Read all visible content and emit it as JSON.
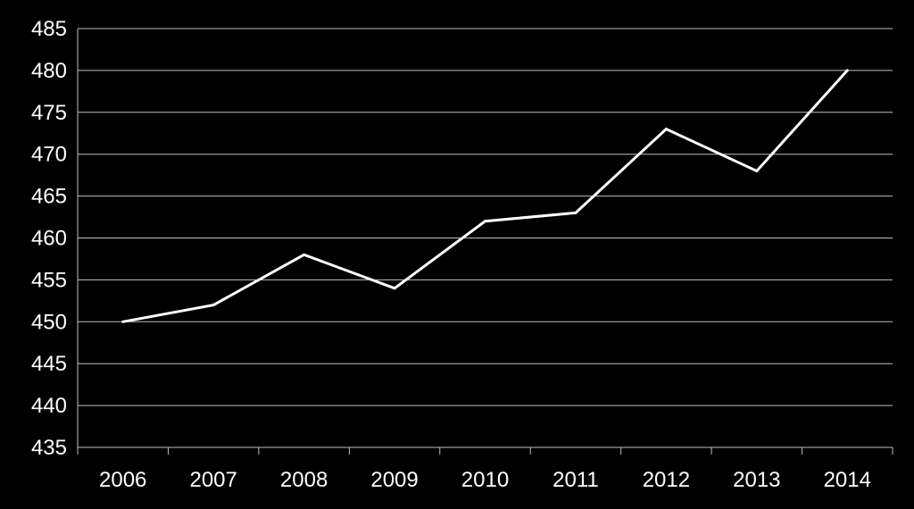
{
  "colors": {
    "background": "#000000",
    "gridline": "#bfbfbf",
    "line": "#ffffff",
    "text": "#ffffff"
  },
  "chart_data": {
    "type": "line",
    "title": "",
    "xlabel": "",
    "ylabel": "",
    "categories": [
      "2006",
      "2007",
      "2008",
      "2009",
      "2010",
      "2011",
      "2012",
      "2013",
      "2014"
    ],
    "series": [
      {
        "values": [
          450,
          452,
          458,
          454,
          462,
          463,
          473,
          468,
          480
        ]
      }
    ],
    "ylim": [
      435,
      485
    ],
    "y_ticks": [
      435,
      440,
      445,
      450,
      455,
      460,
      465,
      470,
      475,
      480,
      485
    ],
    "grid": true,
    "legend": "none"
  }
}
